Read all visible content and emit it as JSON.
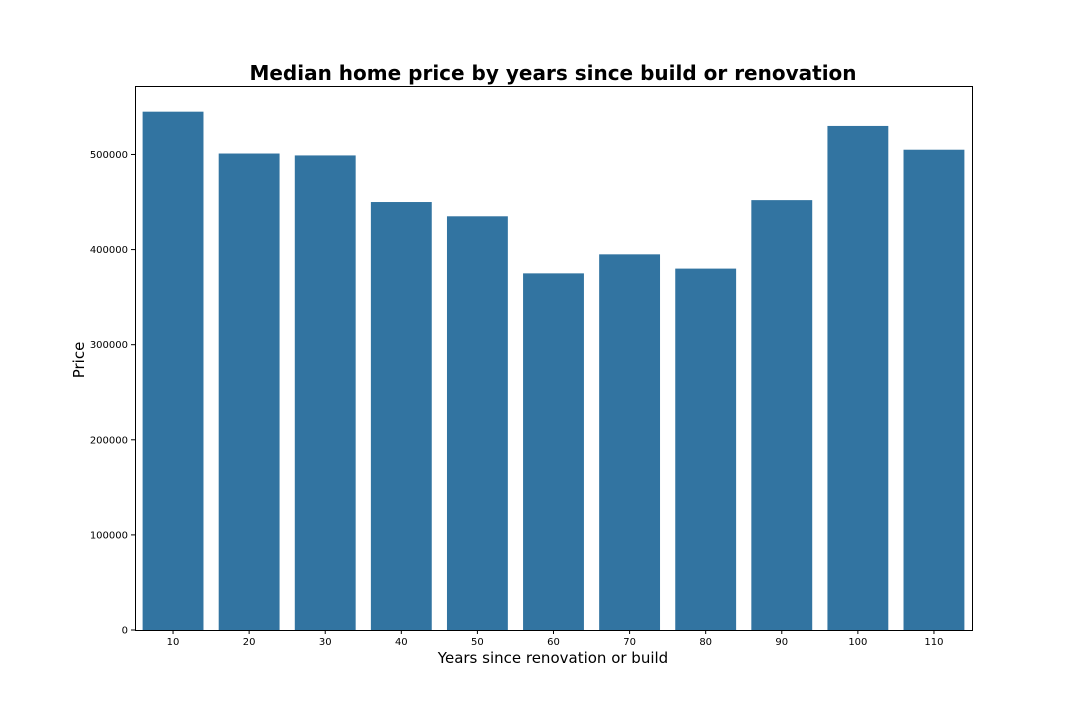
{
  "chart_data": {
    "type": "bar",
    "title": "Median home price by years since build or renovation",
    "xlabel": "Years since renovation or build",
    "ylabel": "Price",
    "categories": [
      "10",
      "20",
      "30",
      "40",
      "50",
      "60",
      "70",
      "80",
      "90",
      "100",
      "110"
    ],
    "values": [
      545000,
      501000,
      499000,
      450000,
      435000,
      375000,
      395000,
      380000,
      452000,
      530000,
      505000
    ],
    "ylim": [
      0,
      572000
    ],
    "yticks": [
      0,
      100000,
      200000,
      300000,
      400000,
      500000
    ],
    "ytick_labels": [
      "0",
      "100000",
      "200000",
      "300000",
      "400000",
      "500000"
    ],
    "grid": false,
    "bar_color": "#3274a1"
  }
}
